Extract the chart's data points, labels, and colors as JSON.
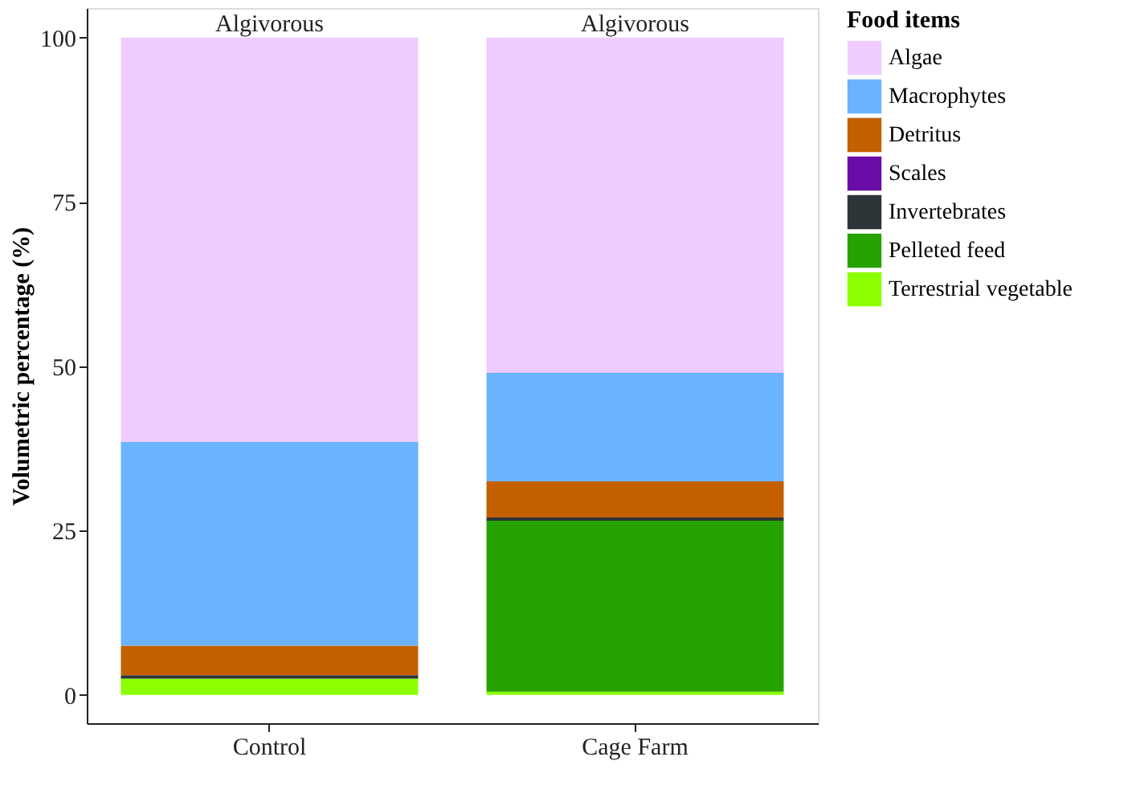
{
  "chart_data": {
    "type": "bar",
    "stacked": true,
    "ylabel": "Volumetric percentage (%)",
    "legend_title": "Food items",
    "legend": "right",
    "categories": [
      "Control",
      "Cage Farm"
    ],
    "series": [
      {
        "name": "Terrestrial vegetable",
        "color": "#8cff00",
        "values": [
          2.5,
          0.5
        ]
      },
      {
        "name": "Pelleted feed",
        "color": "#26a300",
        "values": [
          0,
          26
        ]
      },
      {
        "name": "Invertebrates",
        "color": "#2d3538",
        "values": [
          0.5,
          0.5
        ]
      },
      {
        "name": "Scales",
        "color": "#6a0da8",
        "values": [
          0,
          0
        ]
      },
      {
        "name": "Detritus",
        "color": "#c46000",
        "values": [
          4.5,
          5.5
        ]
      },
      {
        "name": "Macrophytes",
        "color": "#6ab3ff",
        "values": [
          31,
          16.5
        ]
      },
      {
        "name": "Algae",
        "color": "#eeccff",
        "values": [
          61.5,
          51
        ]
      }
    ],
    "ylim": [
      -4.3,
      104.5
    ],
    "yticks": [
      0,
      25,
      50,
      75,
      100
    ],
    "grid": false,
    "annotations": [
      {
        "text": "Algivorous",
        "x": "Control",
        "y": 100
      },
      {
        "text": "Algivorous",
        "x": "Cage Farm",
        "y": 100
      }
    ]
  }
}
